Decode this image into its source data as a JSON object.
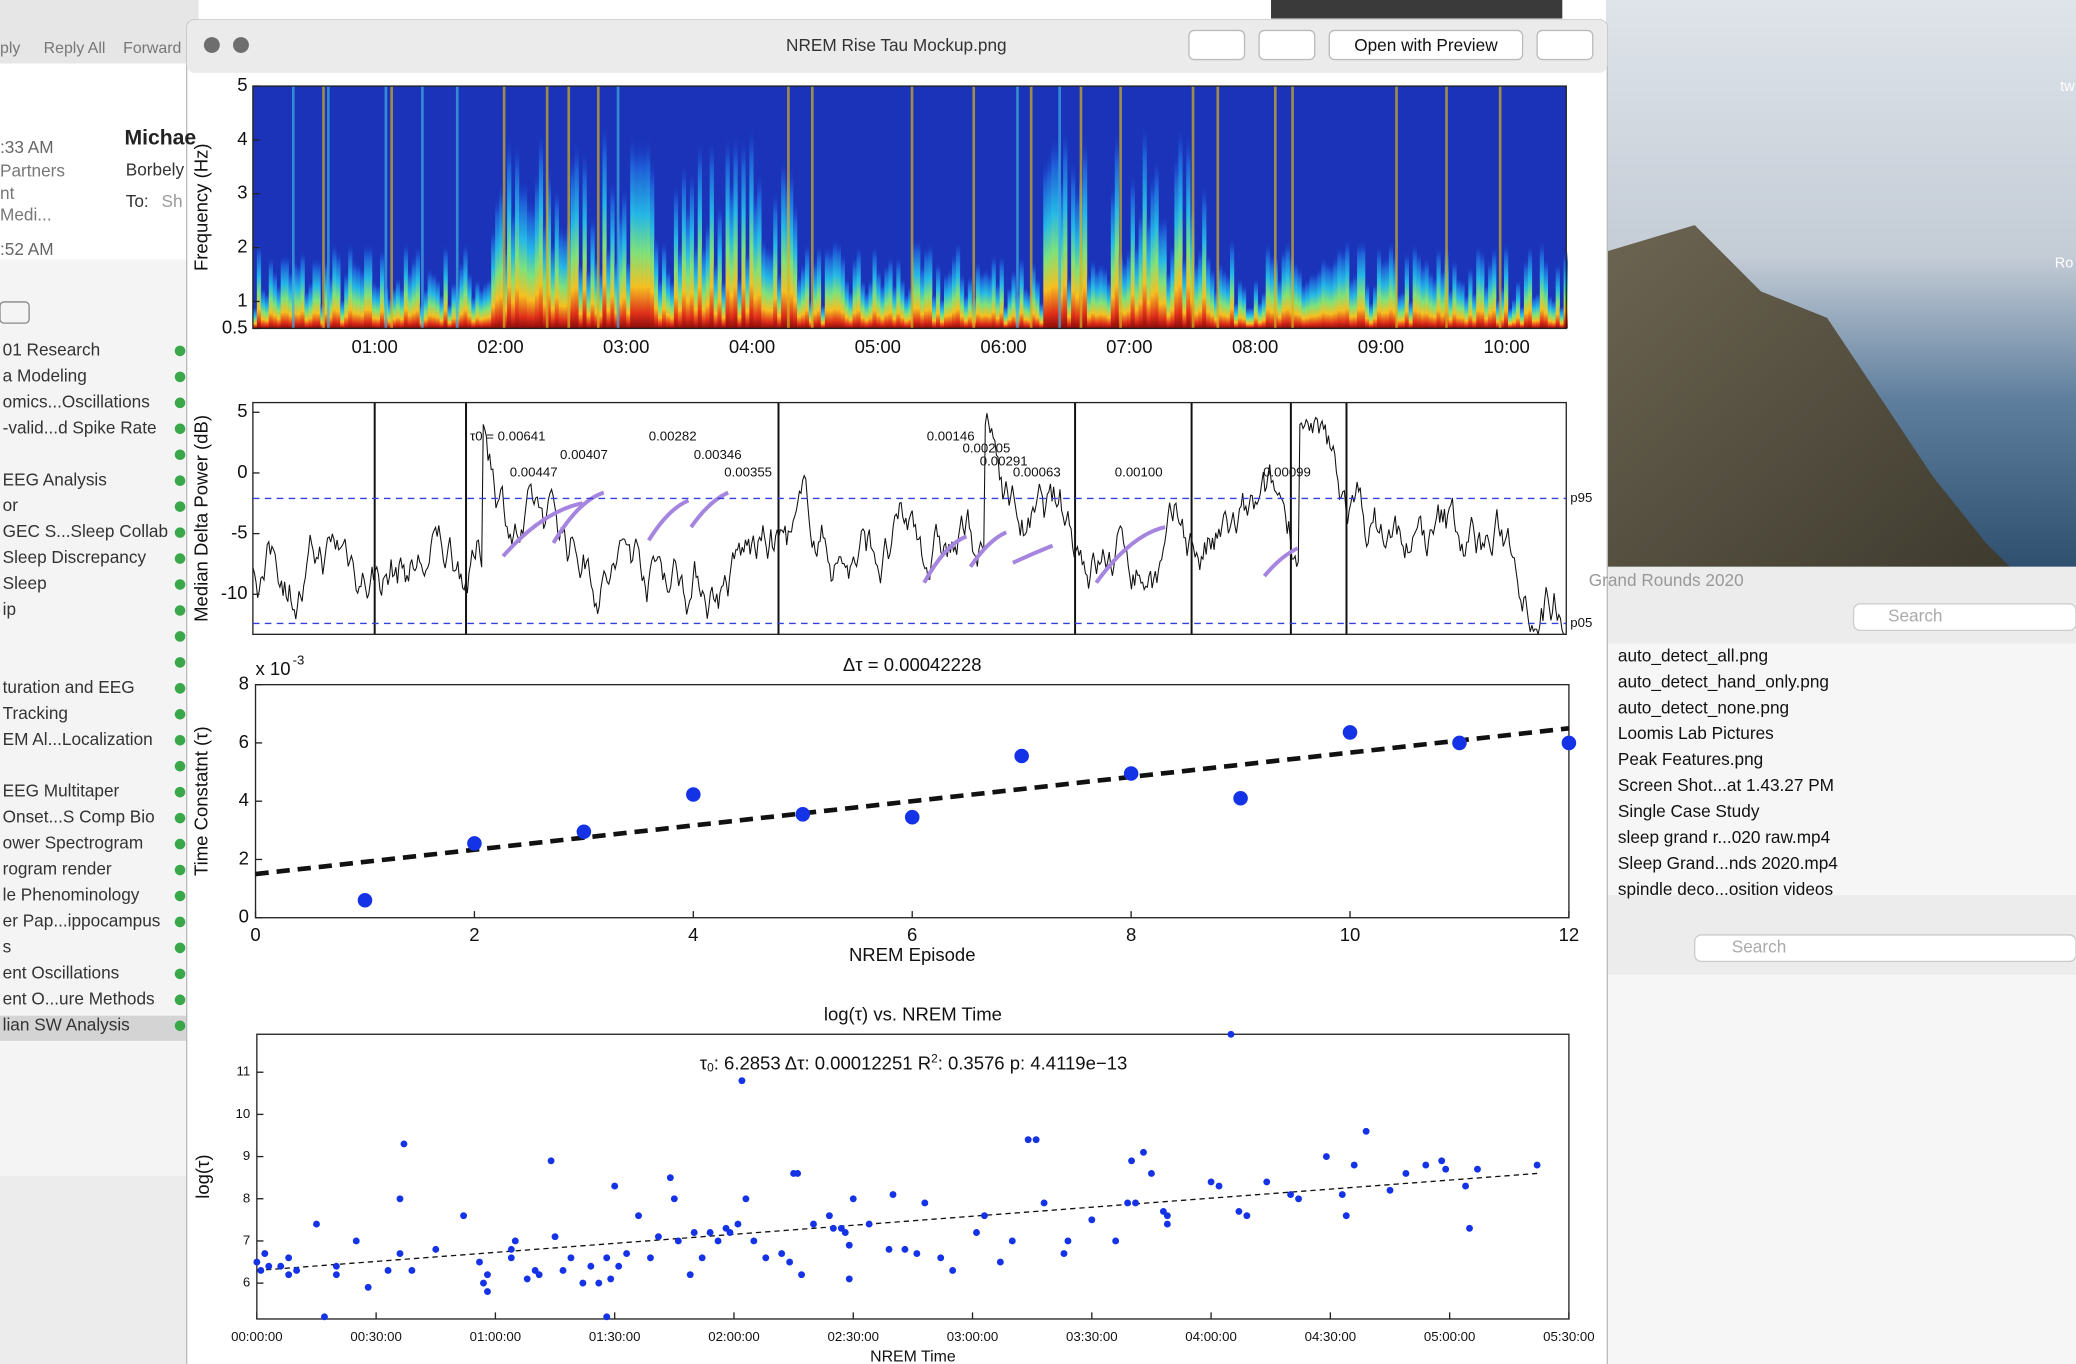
{
  "mail": {
    "toolbar": [
      "ply",
      "Reply All",
      "Forward"
    ],
    "times": [
      ":33 AM",
      ":52 AM"
    ],
    "snippets": [
      "Partners",
      "nt",
      "Medi..."
    ],
    "sender": "Michae",
    "subject": "Borbely",
    "to_label": "To:",
    "to": "Sh",
    "folders": [
      "01 Research",
      "a Modeling",
      "omics...Oscillations",
      "-valid...d Spike Rate",
      "EEG Analysis",
      "or",
      "GEC S...Sleep Collab",
      "Sleep Discrepancy",
      "Sleep",
      "ip",
      "turation and EEG",
      "Tracking",
      "EM Al...Localization",
      "EEG Multitaper",
      "Onset...S Comp Bio",
      "ower Spectrogram",
      "rogram render",
      "le Phenominology",
      "er Pap...ippocampus",
      "s",
      "ent Oscillations",
      "ent O...ure Methods",
      "lian SW Analysis"
    ]
  },
  "viewer": {
    "title": "NREM Rise Tau Mockup.png",
    "button": "Open with Preview",
    "spectrogram": {
      "ylabel": "Frequency (Hz)",
      "ylim": [
        0.5,
        5
      ],
      "yticks": [
        0.5,
        1,
        2,
        3,
        4,
        5
      ],
      "categories": [
        "01:00",
        "02:00",
        "03:00",
        "04:00",
        "05:00",
        "06:00",
        "07:00",
        "08:00",
        "09:00",
        "10:00"
      ]
    },
    "delta": {
      "ylabel": "Median Delta Power (dB)",
      "ylim": [
        -13.3,
        5.8
      ],
      "yticks": [
        5,
        0,
        -5,
        -10
      ],
      "ref_lines": [
        {
          "label": "p95",
          "value": -2.1
        },
        {
          "label": "p05",
          "value": -12.4
        }
      ],
      "annotations": [
        "τ0 = 0.00641",
        "0.00447",
        "0.00407",
        "0.00282",
        "0.00346",
        "0.00355",
        "0.00146",
        "0.00205",
        "0.00291",
        "0.00063",
        "0.00100",
        "0.00099"
      ]
    },
    "episodes": {
      "type": "scatter",
      "title": "Δτ = 0.00042228",
      "multiplier": "x 10",
      "multiplier_exp": "-3",
      "ylabel": "Time Constatnt (τ)",
      "xlabel": "NREM Episode",
      "xlim": [
        0,
        12
      ],
      "xticks": [
        0,
        2,
        4,
        6,
        8,
        10,
        12
      ],
      "ylim": [
        0,
        8
      ],
      "yticks": [
        0,
        2,
        4,
        6,
        8
      ],
      "x": [
        1,
        2,
        3,
        4,
        5,
        6,
        7,
        8,
        9,
        10,
        11,
        12
      ],
      "values": [
        0.6,
        2.55,
        2.95,
        4.23,
        3.55,
        3.45,
        5.55,
        4.95,
        4.1,
        6.36,
        6.0,
        6.0
      ],
      "color": "#1533e6",
      "fit": {
        "x": [
          0,
          12
        ],
        "y": [
          1.5,
          6.5
        ]
      }
    },
    "logtau": {
      "type": "scatter",
      "title": "log(τ) vs. NREM Time",
      "stats": [
        "τ",
        "0",
        ": 6.2853 Δτ: 0.00012251 R",
        "2",
        ": 0.3576 p: 4.4119e−13"
      ],
      "ylabel": "log(τ)",
      "xlabel": "NREM Time",
      "xlim": [
        0,
        330
      ],
      "xticks": [
        {
          "value": 0,
          "label": "00:00:00"
        },
        {
          "value": 30,
          "label": "00:30:00"
        },
        {
          "value": 60,
          "label": "01:00:00"
        },
        {
          "value": 90,
          "label": "01:30:00"
        },
        {
          "value": 120,
          "label": "02:00:00"
        },
        {
          "value": 150,
          "label": "02:30:00"
        },
        {
          "value": 180,
          "label": "03:00:00"
        },
        {
          "value": 210,
          "label": "03:30:00"
        },
        {
          "value": 240,
          "label": "04:00:00"
        },
        {
          "value": 270,
          "label": "04:30:00"
        },
        {
          "value": 300,
          "label": "05:00:00"
        },
        {
          "value": 330,
          "label": "05:30:00"
        }
      ],
      "ylim": [
        5.15,
        11.9
      ],
      "yticks": [
        6,
        7,
        8,
        9,
        10,
        11
      ],
      "color": "#1533e6",
      "x": [
        0,
        1,
        2,
        3,
        6,
        8,
        8,
        10,
        15,
        17,
        20,
        20,
        25,
        28,
        33,
        36,
        36,
        37,
        39,
        45,
        52,
        56,
        57,
        58,
        58,
        64,
        64,
        65,
        68,
        70,
        71,
        74,
        75,
        77,
        79,
        82,
        84,
        86,
        88,
        88,
        89,
        90,
        91,
        93,
        96,
        99,
        101,
        104,
        105,
        106,
        109,
        110,
        112,
        114,
        116,
        118,
        119,
        121,
        122,
        123,
        125,
        128,
        132,
        134,
        135,
        136,
        137,
        140,
        144,
        145,
        147,
        148,
        149,
        149,
        150,
        154,
        159,
        160,
        163,
        166,
        168,
        172,
        175,
        181,
        183,
        187,
        190,
        194,
        196,
        198,
        203,
        204,
        210,
        216,
        219,
        220,
        221,
        223,
        225,
        228,
        229,
        229,
        240,
        242,
        245,
        247,
        249,
        254,
        260,
        262,
        269,
        273,
        274,
        276,
        279,
        285,
        289,
        294,
        298,
        299,
        304,
        305,
        307,
        322
      ],
      "values": [
        6.5,
        6.3,
        6.7,
        6.4,
        6.4,
        6.2,
        6.6,
        6.3,
        7.4,
        5.2,
        6.2,
        6.4,
        7.0,
        5.9,
        6.3,
        8.0,
        6.7,
        9.3,
        6.3,
        6.8,
        7.6,
        6.5,
        6.0,
        5.8,
        6.2,
        6.6,
        6.8,
        7.0,
        6.1,
        6.3,
        6.2,
        8.9,
        7.1,
        6.3,
        6.6,
        6.0,
        6.4,
        6.0,
        6.6,
        5.2,
        6.1,
        8.3,
        6.4,
        6.7,
        7.6,
        6.6,
        7.1,
        8.5,
        8.0,
        7.0,
        6.2,
        7.2,
        6.6,
        7.2,
        7.0,
        7.3,
        7.2,
        7.4,
        10.8,
        8.0,
        7.0,
        6.6,
        6.7,
        6.5,
        8.6,
        8.6,
        6.2,
        7.4,
        7.6,
        7.3,
        7.3,
        7.2,
        6.9,
        6.1,
        8.0,
        7.4,
        6.8,
        8.1,
        6.8,
        6.7,
        7.9,
        6.6,
        6.3,
        7.2,
        7.6,
        6.5,
        7.0,
        9.4,
        9.4,
        7.9,
        6.7,
        7.0,
        7.5,
        7.0,
        7.9,
        8.9,
        7.9,
        9.1,
        8.6,
        7.7,
        7.4,
        7.6,
        8.4,
        8.3,
        11.9,
        7.7,
        7.6,
        8.4,
        8.1,
        8.0,
        9.0,
        8.1,
        7.6,
        8.8,
        9.6,
        8.2,
        8.6,
        8.8,
        8.9,
        8.7,
        8.3,
        7.3,
        8.7,
        8.8
      ],
      "fit": {
        "x": [
          0,
          322
        ],
        "y": [
          6.3,
          8.6
        ]
      }
    }
  },
  "finder": {
    "title": "Grand Rounds 2020",
    "search": "Search",
    "files": [
      "auto_detect_all.png",
      "auto_detect_hand_only.png",
      "auto_detect_none.png",
      "Loomis Lab Pictures",
      "Peak Features.png",
      "Screen Shot...at 1.43.27 PM",
      "Single Case Study",
      "sleep grand r...020 raw.mp4",
      "Sleep Grand...nds 2020.mp4",
      "spindle deco...osition videos"
    ],
    "search2": "Search"
  },
  "desktop_labels": [
    "tw",
    "Ro"
  ]
}
